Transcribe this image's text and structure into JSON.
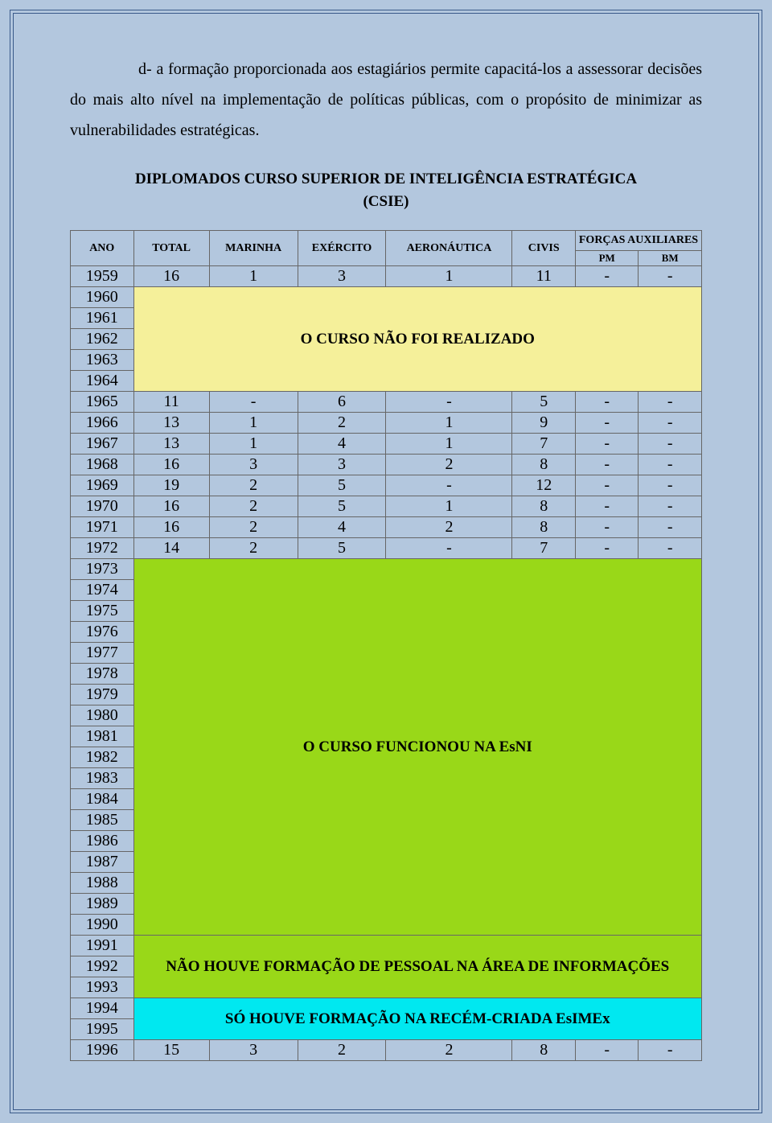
{
  "paragraph": "d- a formação proporcionada aos estagiários permite capacitá-los a assessorar decisões do mais alto nível na implementação de políticas públicas, com o propósito de minimizar as vulnerabilidades estratégicas.",
  "table_title_line1": "DIPLOMADOS CURSO SUPERIOR DE INTELIGÊNCIA ESTRATÉGICA",
  "table_title_line2": "(CSIE)",
  "headers": {
    "ano": "ANO",
    "total": "TOTAL",
    "marinha": "MARINHA",
    "exercito": "EXÉRCITO",
    "aeronautica": "AERONÁUTICA",
    "civis": "CIVIS",
    "forcas": "FORÇAS AUXILIARES",
    "pm": "PM",
    "bm": "BM"
  },
  "msg_yellow": "O CURSO NÃO FOI REALIZADO",
  "msg_green1": "O CURSO FUNCIONOU NA EsNI",
  "msg_green2": "NÃO HOUVE FORMAÇÃO DE PESSOAL NA ÁREA DE INFORMAÇÕES",
  "msg_cyan": "SÓ HOUVE FORMAÇÃO NA RECÉM-CRIADA EsIMEx",
  "rows": {
    "r1959": {
      "ano": "1959",
      "total": "16",
      "mar": "1",
      "exe": "3",
      "aer": "1",
      "civ": "11",
      "pm": "-",
      "bm": "-"
    },
    "r1960": {
      "ano": "1960"
    },
    "r1961": {
      "ano": "1961"
    },
    "r1962": {
      "ano": "1962"
    },
    "r1963": {
      "ano": "1963"
    },
    "r1964": {
      "ano": "1964"
    },
    "r1965": {
      "ano": "1965",
      "total": "11",
      "mar": "-",
      "exe": "6",
      "aer": "-",
      "civ": "5",
      "pm": "-",
      "bm": "-"
    },
    "r1966": {
      "ano": "1966",
      "total": "13",
      "mar": "1",
      "exe": "2",
      "aer": "1",
      "civ": "9",
      "pm": "-",
      "bm": "-"
    },
    "r1967": {
      "ano": "1967",
      "total": "13",
      "mar": "1",
      "exe": "4",
      "aer": "1",
      "civ": "7",
      "pm": "-",
      "bm": "-"
    },
    "r1968": {
      "ano": "1968",
      "total": "16",
      "mar": "3",
      "exe": "3",
      "aer": "2",
      "civ": "8",
      "pm": "-",
      "bm": "-"
    },
    "r1969": {
      "ano": "1969",
      "total": "19",
      "mar": "2",
      "exe": "5",
      "aer": "-",
      "civ": "12",
      "pm": "-",
      "bm": "-"
    },
    "r1970": {
      "ano": "1970",
      "total": "16",
      "mar": "2",
      "exe": "5",
      "aer": "1",
      "civ": "8",
      "pm": "-",
      "bm": "-"
    },
    "r1971": {
      "ano": "1971",
      "total": "16",
      "mar": "2",
      "exe": "4",
      "aer": "2",
      "civ": "8",
      "pm": "-",
      "bm": "-"
    },
    "r1972": {
      "ano": "1972",
      "total": "14",
      "mar": "2",
      "exe": "5",
      "aer": "-",
      "civ": "7",
      "pm": "-",
      "bm": "-"
    },
    "r1973": {
      "ano": "1973"
    },
    "r1974": {
      "ano": "1974"
    },
    "r1975": {
      "ano": "1975"
    },
    "r1976": {
      "ano": "1976"
    },
    "r1977": {
      "ano": "1977"
    },
    "r1978": {
      "ano": "1978"
    },
    "r1979": {
      "ano": "1979"
    },
    "r1980": {
      "ano": "1980"
    },
    "r1981": {
      "ano": "1981"
    },
    "r1982": {
      "ano": "1982"
    },
    "r1983": {
      "ano": "1983"
    },
    "r1984": {
      "ano": "1984"
    },
    "r1985": {
      "ano": "1985"
    },
    "r1986": {
      "ano": "1986"
    },
    "r1987": {
      "ano": "1987"
    },
    "r1988": {
      "ano": "1988"
    },
    "r1989": {
      "ano": "1989"
    },
    "r1990": {
      "ano": "1990"
    },
    "r1991": {
      "ano": "1991"
    },
    "r1992": {
      "ano": "1992"
    },
    "r1993": {
      "ano": "1993"
    },
    "r1994": {
      "ano": "1994"
    },
    "r1995": {
      "ano": "1995"
    },
    "r1996": {
      "ano": "1996",
      "total": "15",
      "mar": "3",
      "exe": "2",
      "aer": "2",
      "civ": "8",
      "pm": "-",
      "bm": "-"
    }
  }
}
